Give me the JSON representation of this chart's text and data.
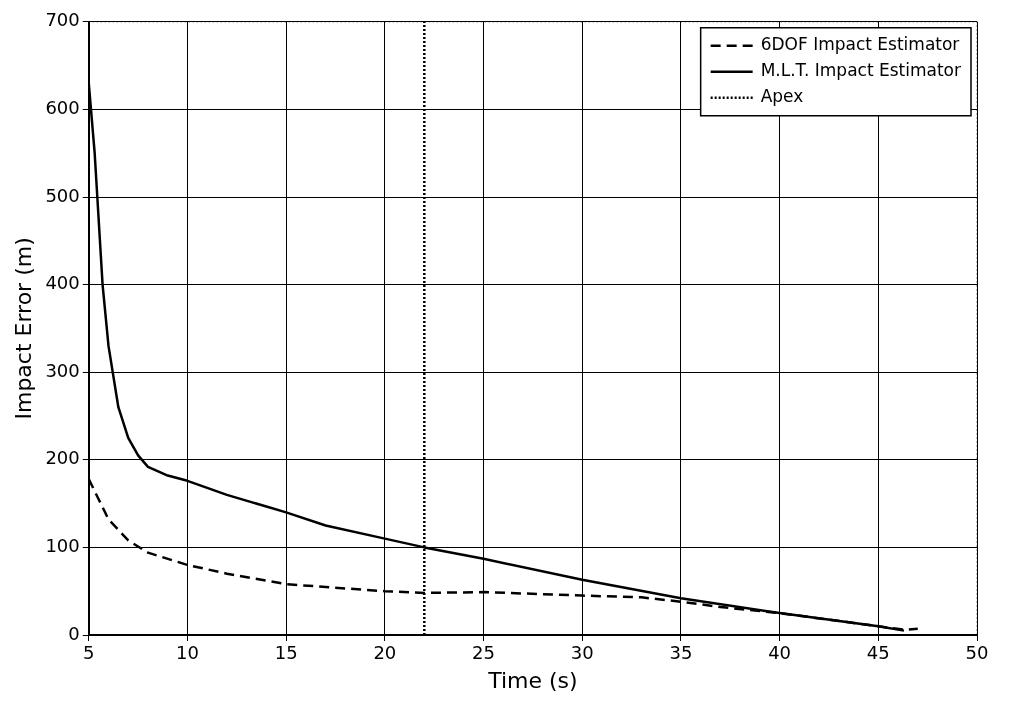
{
  "chart_data": {
    "type": "line",
    "xlabel": "Time (s)",
    "ylabel": "Impact Error (m)",
    "xlim": [
      5,
      50
    ],
    "xticks": [
      5,
      10,
      15,
      20,
      25,
      30,
      35,
      40,
      45,
      50
    ],
    "ylim": [
      0,
      700
    ],
    "yticks": [
      0,
      100,
      200,
      300,
      400,
      500,
      600,
      700
    ],
    "grid": true,
    "legend": "top right",
    "marker": "none",
    "series": [
      {
        "name": "6DOF Impact Estimator",
        "color": "#000000",
        "line_style": "dashed",
        "x": [
          5,
          5.5,
          6,
          7,
          8,
          10,
          12,
          15,
          20,
          22,
          25,
          30,
          33,
          35,
          37,
          40,
          45,
          46.3,
          47
        ],
        "values": [
          178,
          155,
          132,
          108,
          94,
          80,
          70,
          58,
          50,
          48,
          49,
          45,
          43,
          38,
          32,
          25,
          10,
          6,
          7
        ]
      },
      {
        "name": "M.L.T. Impact Estimator",
        "color": "#000000",
        "line_style": "solid",
        "x": [
          5,
          5.3,
          5.7,
          6,
          6.5,
          7,
          7.5,
          8,
          9,
          10,
          12,
          15,
          17,
          20,
          22,
          25,
          30,
          35,
          40,
          45,
          46.3
        ],
        "values": [
          630,
          550,
          400,
          330,
          260,
          225,
          205,
          192,
          182,
          176,
          160,
          140,
          125,
          110,
          100,
          87,
          63,
          42,
          25,
          10,
          5
        ]
      },
      {
        "name": "Apex",
        "color": "#000000",
        "line_style": "dotted",
        "x": [
          22,
          22
        ],
        "values": [
          0,
          700
        ]
      }
    ]
  }
}
